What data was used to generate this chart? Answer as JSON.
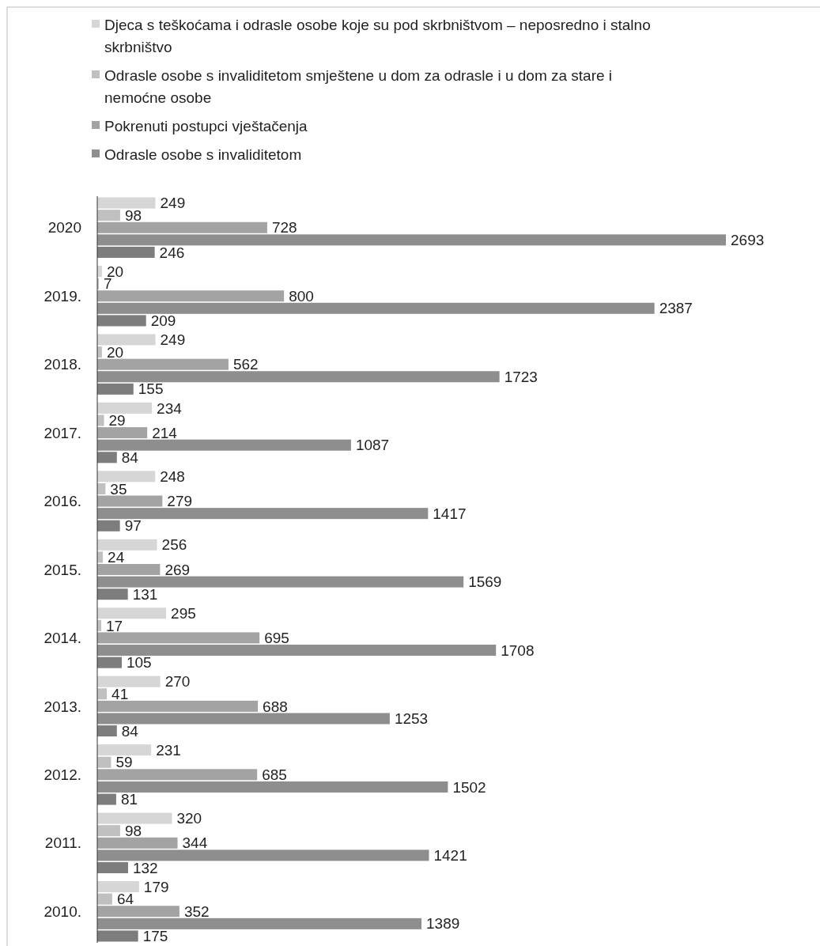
{
  "chart_data": {
    "type": "bar",
    "orientation": "horizontal",
    "categories": [
      "2020",
      "2019.",
      "2018.",
      "2017.",
      "2016.",
      "2015.",
      "2014.",
      "2013.",
      "2012.",
      "2011.",
      "2010."
    ],
    "data_labels": true,
    "legend": "top left",
    "series": [
      {
        "name": "Djeca s teškoćama  i odrasle osobe koje su pod skrbništvom – neposredno i stalno skrbništvo",
        "color": "#d6d6d6",
        "values": [
          249,
          20,
          249,
          234,
          248,
          256,
          295,
          270,
          231,
          320,
          179
        ]
      },
      {
        "name": "Odrasle osobe s invaliditetom smještene u dom za odrasle i u dom za stare i nemoćne osobe",
        "color": "#c0c0c0",
        "values": [
          98,
          7,
          20,
          29,
          35,
          24,
          17,
          41,
          59,
          98,
          64
        ]
      },
      {
        "name": "Pokrenuti postupci vještačenja",
        "color": "#a3a3a3",
        "values": [
          728,
          800,
          562,
          214,
          279,
          269,
          695,
          688,
          685,
          344,
          352
        ]
      },
      {
        "name": "Odrasle osobe s invaliditetom",
        "color": "#8e8e8e",
        "values": [
          2693,
          2387,
          1723,
          1087,
          1417,
          1569,
          1708,
          1253,
          1502,
          1421,
          1389
        ]
      },
      {
        "color": "#7d7d7d",
        "values": [
          246,
          209,
          155,
          84,
          97,
          131,
          105,
          84,
          81,
          132,
          175
        ]
      }
    ]
  }
}
